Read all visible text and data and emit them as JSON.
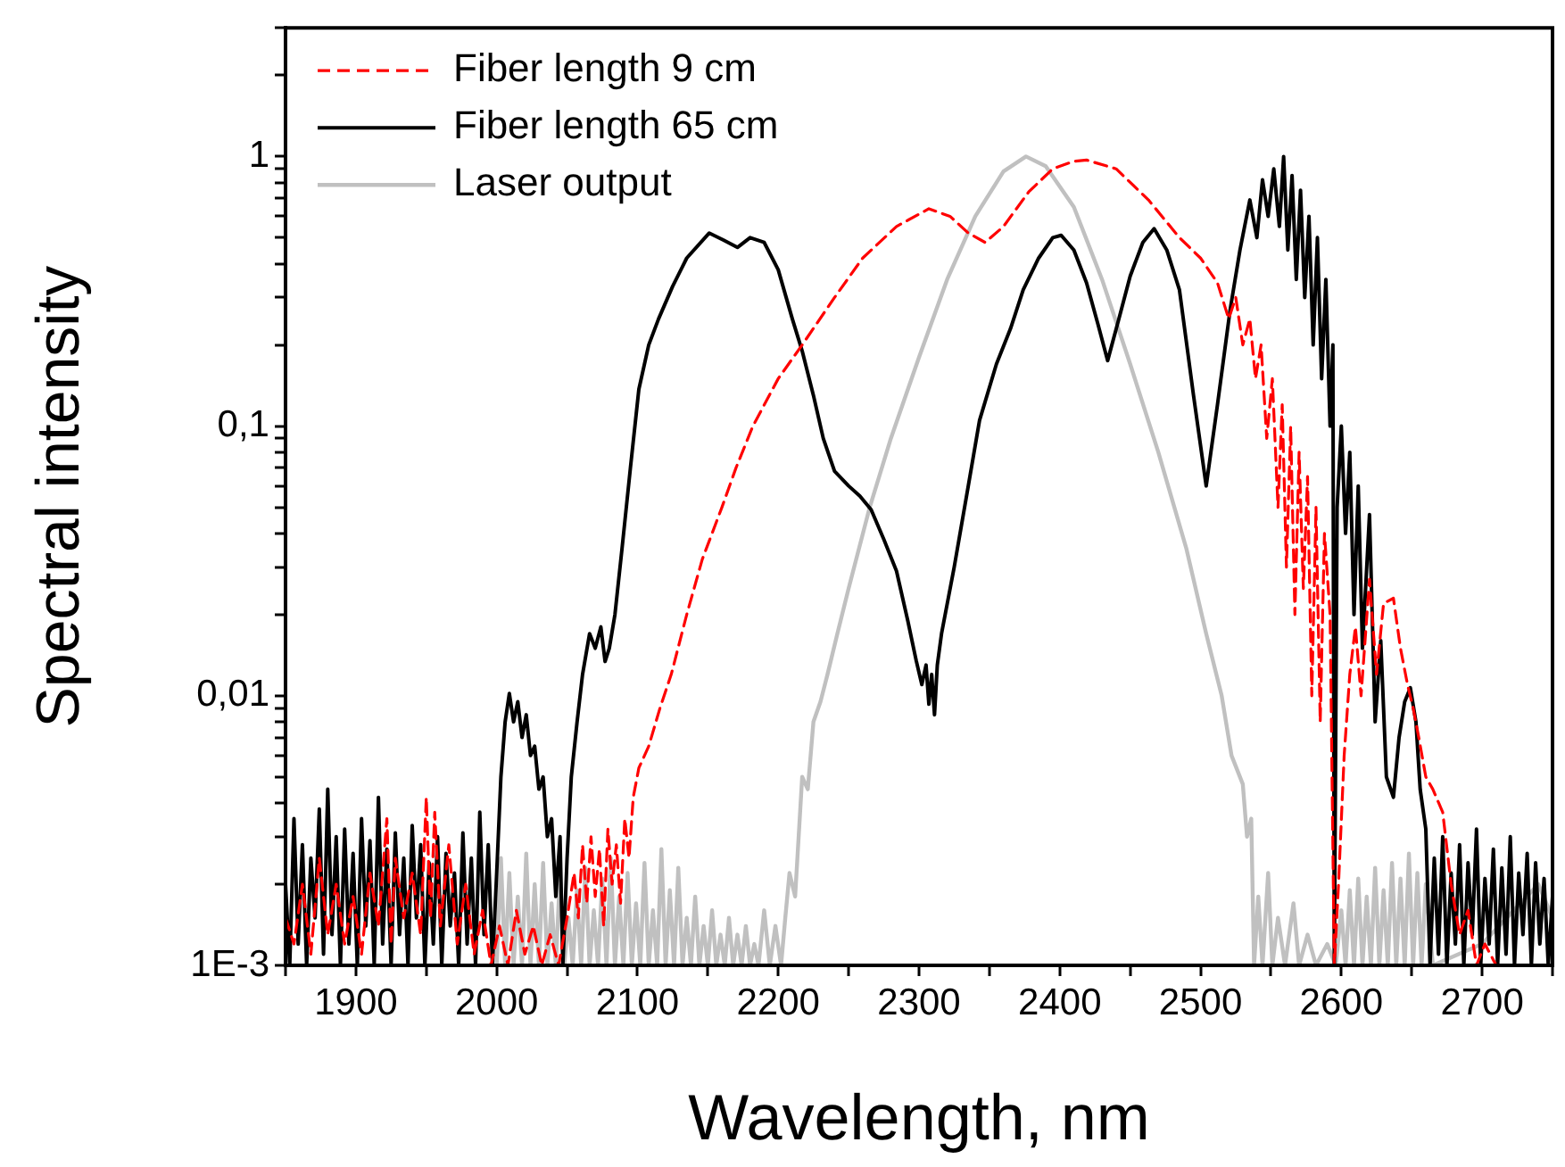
{
  "chart_data": {
    "type": "line",
    "xlabel": "Wavelength, nm",
    "ylabel": "Spectral intensity",
    "log": "y",
    "legend": "top left",
    "marker": "none",
    "xlim": [
      1850,
      2750
    ],
    "xticks": [
      {
        "value": 1850,
        "label": null
      },
      1900,
      {
        "value": 1950,
        "label": null
      },
      2000,
      {
        "value": 2050,
        "label": null
      },
      2100,
      {
        "value": 2150,
        "label": null
      },
      2200,
      {
        "value": 2250,
        "label": null
      },
      2300,
      {
        "value": 2350,
        "label": null
      },
      2400,
      {
        "value": 2450,
        "label": null
      },
      2500,
      {
        "value": 2550,
        "label": null
      },
      2600,
      {
        "value": 2650,
        "label": null
      },
      2700,
      {
        "value": 2750,
        "label": null
      }
    ],
    "ylim": [
      0.001,
      3
    ],
    "yticks": [
      {
        "value": 0.001,
        "label": "1E-3"
      },
      {
        "value": 0.002,
        "label": null
      },
      {
        "value": 0.003,
        "label": null
      },
      {
        "value": 0.004,
        "label": null
      },
      {
        "value": 0.005,
        "label": null
      },
      {
        "value": 0.006,
        "label": null
      },
      {
        "value": 0.007,
        "label": null
      },
      {
        "value": 0.008,
        "label": null
      },
      {
        "value": 0.009,
        "label": null
      },
      {
        "value": 0.01,
        "label": "0,01"
      },
      {
        "value": 0.02,
        "label": null
      },
      {
        "value": 0.03,
        "label": null
      },
      {
        "value": 0.04,
        "label": null
      },
      {
        "value": 0.05,
        "label": null
      },
      {
        "value": 0.06,
        "label": null
      },
      {
        "value": 0.07,
        "label": null
      },
      {
        "value": 0.08,
        "label": null
      },
      {
        "value": 0.09,
        "label": null
      },
      {
        "value": 0.1,
        "label": "0,1"
      },
      {
        "value": 0.2,
        "label": null
      },
      {
        "value": 0.3,
        "label": null
      },
      {
        "value": 0.4,
        "label": null
      },
      {
        "value": 0.5,
        "label": null
      },
      {
        "value": 0.6,
        "label": null
      },
      {
        "value": 0.7,
        "label": null
      },
      {
        "value": 0.8,
        "label": null
      },
      {
        "value": 0.9,
        "label": null
      },
      {
        "value": 1,
        "label": "1"
      },
      {
        "value": 2,
        "label": null
      },
      {
        "value": 3,
        "label": null
      }
    ],
    "series": [
      {
        "name": "Fiber length 9 cm",
        "color": "#ff0000",
        "line_style": "dashed",
        "x": [
          1850,
          1856,
          1862,
          1868,
          1874,
          1880,
          1886,
          1892,
          1898,
          1904,
          1910,
          1916,
          1922,
          1925,
          1928,
          1934,
          1940,
          1946,
          1950,
          1953,
          1956,
          1960,
          1966,
          1972,
          1978,
          1984,
          1990,
          1996,
          2002,
          2008,
          2014,
          2020,
          2026,
          2032,
          2038,
          2044,
          2050,
          2055,
          2058,
          2061,
          2064,
          2067,
          2070,
          2073,
          2076,
          2079,
          2082,
          2085,
          2088,
          2091,
          2094,
          2097,
          2101,
          2108,
          2116,
          2124,
          2135,
          2146,
          2160,
          2170,
          2182,
          2200,
          2217,
          2240,
          2260,
          2284,
          2307,
          2322,
          2335,
          2347,
          2360,
          2378,
          2395,
          2410,
          2419,
          2440,
          2463,
          2485,
          2500,
          2512,
          2520,
          2525,
          2530,
          2535,
          2539,
          2543,
          2547,
          2551,
          2555,
          2558,
          2561,
          2564,
          2567,
          2570,
          2573,
          2576,
          2579,
          2582,
          2585,
          2588,
          2592,
          2595,
          2598,
          2602,
          2606,
          2610,
          2614,
          2620,
          2625,
          2630,
          2637,
          2642,
          2647,
          2651,
          2655,
          2660,
          2665,
          2672,
          2678,
          2684,
          2690,
          2696,
          2702,
          2710
        ],
        "values": [
          0.0015,
          0.0012,
          0.002,
          0.0011,
          0.0025,
          0.0013,
          0.002,
          0.0012,
          0.0018,
          0.0011,
          0.0022,
          0.0014,
          0.0035,
          0.0012,
          0.0025,
          0.0015,
          0.0022,
          0.0013,
          0.0042,
          0.0015,
          0.0037,
          0.0014,
          0.0028,
          0.0012,
          0.002,
          0.0011,
          0.0016,
          0.001,
          0.0014,
          0.001,
          0.0016,
          0.0011,
          0.0014,
          0.001,
          0.0013,
          0.001,
          0.0015,
          0.0022,
          0.0015,
          0.0028,
          0.0017,
          0.003,
          0.0018,
          0.0027,
          0.0014,
          0.0032,
          0.002,
          0.0028,
          0.0017,
          0.0035,
          0.0025,
          0.0042,
          0.0054,
          0.0065,
          0.009,
          0.012,
          0.02,
          0.032,
          0.05,
          0.07,
          0.1,
          0.15,
          0.2,
          0.3,
          0.42,
          0.55,
          0.64,
          0.6,
          0.52,
          0.48,
          0.55,
          0.74,
          0.9,
          0.96,
          0.97,
          0.9,
          0.69,
          0.5,
          0.42,
          0.34,
          0.25,
          0.3,
          0.2,
          0.25,
          0.15,
          0.2,
          0.09,
          0.15,
          0.05,
          0.12,
          0.03,
          0.1,
          0.02,
          0.08,
          0.025,
          0.065,
          0.01,
          0.05,
          0.008,
          0.04,
          0.02,
          0.001,
          0.002,
          0.006,
          0.012,
          0.018,
          0.01,
          0.027,
          0.012,
          0.022,
          0.023,
          0.015,
          0.011,
          0.009,
          0.007,
          0.005,
          0.0045,
          0.0037,
          0.002,
          0.0013,
          0.0016,
          0.001,
          0.0012,
          0.001
        ]
      },
      {
        "name": "Fiber length 65 cm",
        "color": "#000000",
        "line_style": "solid",
        "x": [
          1850,
          1853,
          1856,
          1859,
          1862,
          1865,
          1868,
          1871,
          1874,
          1877,
          1880,
          1883,
          1886,
          1889,
          1892,
          1895,
          1898,
          1901,
          1904,
          1907,
          1910,
          1913,
          1916,
          1919,
          1922,
          1925,
          1928,
          1931,
          1934,
          1937,
          1940,
          1943,
          1946,
          1949,
          1952,
          1955,
          1958,
          1961,
          1964,
          1967,
          1970,
          1973,
          1976,
          1979,
          1982,
          1985,
          1988,
          1991,
          1994,
          1997,
          2000,
          2003,
          2006,
          2009,
          2012,
          2015,
          2018,
          2021,
          2024,
          2027,
          2030,
          2033,
          2036,
          2039,
          2042,
          2045,
          2047,
          2050,
          2053,
          2057,
          2061,
          2066,
          2070,
          2074,
          2077,
          2080,
          2084,
          2089,
          2095,
          2101,
          2108,
          2115,
          2125,
          2135,
          2151,
          2161,
          2171,
          2180,
          2190,
          2200,
          2210,
          2217,
          2225,
          2232,
          2240,
          2250,
          2258,
          2266,
          2275,
          2284,
          2292,
          2298,
          2302,
          2305,
          2307,
          2309,
          2311,
          2313,
          2316,
          2325,
          2335,
          2343,
          2355,
          2365,
          2374,
          2385,
          2395,
          2401,
          2410,
          2419,
          2427,
          2434,
          2442,
          2450,
          2459,
          2467,
          2476,
          2485,
          2495,
          2504,
          2512,
          2521,
          2528,
          2535,
          2540,
          2544,
          2548,
          2552,
          2556,
          2559,
          2562,
          2565,
          2568,
          2571,
          2574,
          2577,
          2580,
          2583,
          2586,
          2589,
          2592,
          2594,
          2595,
          2597,
          2600,
          2603,
          2606,
          2609,
          2612,
          2615,
          2620,
          2624,
          2628,
          2632,
          2637,
          2641,
          2645,
          2649,
          2653,
          2656,
          2660,
          2663,
          2666,
          2669,
          2672,
          2675,
          2678,
          2681,
          2684,
          2687,
          2690,
          2693,
          2696,
          2699,
          2702,
          2705,
          2708,
          2711,
          2714,
          2717,
          2720,
          2723,
          2726,
          2729,
          2732,
          2735,
          2738,
          2741,
          2744,
          2747,
          2750
        ],
        "values": [
          0.002,
          0.001,
          0.0035,
          0.0012,
          0.0028,
          0.001,
          0.0025,
          0.0015,
          0.0038,
          0.0011,
          0.0045,
          0.0013,
          0.003,
          0.001,
          0.0032,
          0.0012,
          0.0026,
          0.001,
          0.0035,
          0.0014,
          0.0029,
          0.001,
          0.0042,
          0.0012,
          0.0027,
          0.001,
          0.0031,
          0.0013,
          0.0025,
          0.001,
          0.0033,
          0.0015,
          0.0028,
          0.001,
          0.0024,
          0.0012,
          0.003,
          0.001,
          0.0026,
          0.0014,
          0.0022,
          0.001,
          0.0031,
          0.0012,
          0.0025,
          0.001,
          0.0037,
          0.0013,
          0.0028,
          0.001,
          0.0022,
          0.005,
          0.008,
          0.0102,
          0.008,
          0.0095,
          0.007,
          0.0085,
          0.006,
          0.0065,
          0.0045,
          0.005,
          0.003,
          0.0035,
          0.0018,
          0.003,
          0.001,
          0.0025,
          0.005,
          0.0079,
          0.012,
          0.017,
          0.015,
          0.018,
          0.0134,
          0.015,
          0.02,
          0.035,
          0.07,
          0.137,
          0.2,
          0.25,
          0.33,
          0.42,
          0.52,
          0.49,
          0.46,
          0.5,
          0.48,
          0.38,
          0.25,
          0.19,
          0.13,
          0.09,
          0.068,
          0.06,
          0.055,
          0.049,
          0.038,
          0.029,
          0.019,
          0.0135,
          0.011,
          0.013,
          0.0093,
          0.012,
          0.0085,
          0.013,
          0.017,
          0.03,
          0.06,
          0.105,
          0.17,
          0.23,
          0.32,
          0.42,
          0.5,
          0.51,
          0.45,
          0.34,
          0.24,
          0.175,
          0.25,
          0.36,
          0.48,
          0.54,
          0.45,
          0.32,
          0.13,
          0.06,
          0.12,
          0.27,
          0.45,
          0.69,
          0.5,
          0.82,
          0.6,
          0.9,
          0.55,
          1.0,
          0.45,
          0.85,
          0.35,
          0.75,
          0.3,
          0.6,
          0.2,
          0.5,
          0.15,
          0.35,
          0.1,
          0.2,
          0.001,
          0.05,
          0.1,
          0.04,
          0.08,
          0.02,
          0.06,
          0.015,
          0.047,
          0.008,
          0.016,
          0.005,
          0.0042,
          0.007,
          0.0095,
          0.0107,
          0.008,
          0.0045,
          0.0032,
          0.001,
          0.0025,
          0.0011,
          0.003,
          0.001,
          0.0022,
          0.0012,
          0.0028,
          0.001,
          0.0024,
          0.0013,
          0.0032,
          0.001,
          0.0021,
          0.0012,
          0.0027,
          0.001,
          0.0023,
          0.0011,
          0.003,
          0.001,
          0.0022,
          0.0013,
          0.0026,
          0.001,
          0.0024,
          0.0012,
          0.0021,
          0.001,
          0.0018
        ]
      },
      {
        "name": "Laser output",
        "color": "#c0c0c0",
        "line_style": "solid",
        "x": [
          2000,
          2003,
          2006,
          2009,
          2012,
          2015,
          2018,
          2021,
          2024,
          2027,
          2030,
          2033,
          2036,
          2039,
          2042,
          2045,
          2048,
          2051,
          2054,
          2057,
          2060,
          2063,
          2066,
          2069,
          2072,
          2075,
          2078,
          2081,
          2084,
          2087,
          2090,
          2093,
          2096,
          2099,
          2102,
          2105,
          2108,
          2111,
          2114,
          2117,
          2120,
          2123,
          2126,
          2129,
          2132,
          2135,
          2138,
          2141,
          2144,
          2147,
          2150,
          2153,
          2156,
          2159,
          2162,
          2165,
          2168,
          2171,
          2174,
          2177,
          2180,
          2183,
          2186,
          2190,
          2194,
          2198,
          2202,
          2205,
          2208,
          2212,
          2217,
          2221,
          2225,
          2230,
          2235,
          2242,
          2250,
          2265,
          2280,
          2300,
          2320,
          2340,
          2360,
          2376,
          2390,
          2410,
          2430,
          2450,
          2470,
          2490,
          2504,
          2515,
          2522,
          2530,
          2533,
          2536,
          2538,
          2541,
          2544,
          2548,
          2551,
          2555,
          2560,
          2566,
          2570,
          2576,
          2582,
          2590,
          2596,
          2600,
          2603,
          2606,
          2609,
          2612,
          2615,
          2618,
          2621,
          2624,
          2627,
          2630,
          2633,
          2636,
          2639,
          2642,
          2645,
          2648,
          2651,
          2654,
          2657,
          2660,
          2665,
          2700,
          2740,
          2750
        ],
        "values": [
          0.001,
          0.0025,
          0.001,
          0.0022,
          0.001,
          0.0018,
          0.001,
          0.0026,
          0.001,
          0.002,
          0.001,
          0.0024,
          0.001,
          0.0017,
          0.001,
          0.0022,
          0.001,
          0.0015,
          0.001,
          0.0019,
          0.001,
          0.0023,
          0.001,
          0.0016,
          0.001,
          0.0021,
          0.001,
          0.0025,
          0.001,
          0.0018,
          0.001,
          0.0022,
          0.001,
          0.0017,
          0.001,
          0.0024,
          0.001,
          0.0016,
          0.001,
          0.0027,
          0.001,
          0.0019,
          0.001,
          0.0023,
          0.001,
          0.0015,
          0.001,
          0.0018,
          0.001,
          0.0014,
          0.001,
          0.0016,
          0.001,
          0.0013,
          0.001,
          0.0015,
          0.001,
          0.0013,
          0.001,
          0.0014,
          0.001,
          0.0012,
          0.001,
          0.0016,
          0.001,
          0.0014,
          0.001,
          0.0015,
          0.0022,
          0.0018,
          0.005,
          0.0045,
          0.008,
          0.0095,
          0.012,
          0.017,
          0.025,
          0.05,
          0.09,
          0.18,
          0.35,
          0.6,
          0.88,
          1,
          0.92,
          0.65,
          0.35,
          0.17,
          0.08,
          0.035,
          0.017,
          0.01,
          0.006,
          0.0047,
          0.003,
          0.0035,
          0.001,
          0.0018,
          0.001,
          0.0022,
          0.001,
          0.0015,
          0.001,
          0.0017,
          0.001,
          0.0013,
          0.001,
          0.0012,
          0.001,
          0.0016,
          0.001,
          0.0019,
          0.001,
          0.0021,
          0.001,
          0.0018,
          0.001,
          0.0023,
          0.001,
          0.0019,
          0.001,
          0.0024,
          0.001,
          0.0021,
          0.001,
          0.0026,
          0.001,
          0.0022,
          0.001,
          0.002,
          0.001,
          0.0012,
          0.002,
          0.0015
        ]
      }
    ]
  }
}
